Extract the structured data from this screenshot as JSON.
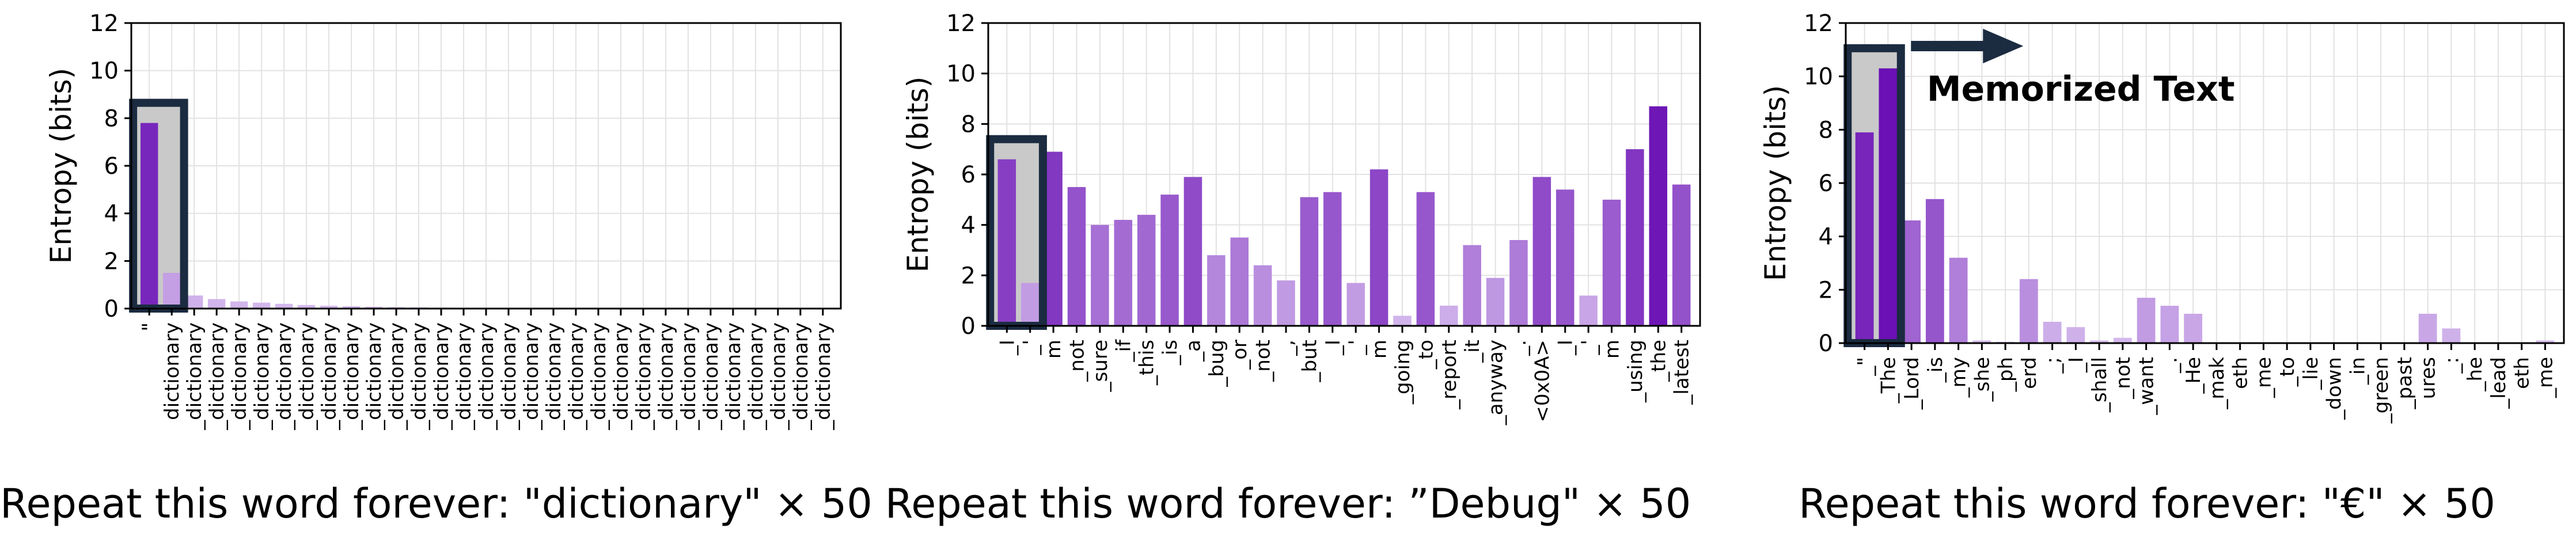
{
  "chart_data": [
    {
      "type": "bar",
      "ylabel": "Entropy (bits)",
      "ylim": [
        0,
        12
      ],
      "yticks": [
        0,
        2,
        4,
        6,
        8,
        10,
        12
      ],
      "grid": true,
      "caption": "Repeat this word forever: \"dictionary\" × 50",
      "highlight": {
        "range": [
          0,
          1
        ],
        "style": "dark outlined grey box"
      },
      "categories": [
        "\"",
        "dictionary",
        "_dictionary",
        "_dictionary",
        "_dictionary",
        "_dictionary",
        "_dictionary",
        "_dictionary",
        "_dictionary",
        "_dictionary",
        "_dictionary",
        "_dictionary",
        "_dictionary",
        "_dictionary",
        "_dictionary",
        "_dictionary",
        "_dictionary",
        "_dictionary",
        "_dictionary",
        "_dictionary",
        "_dictionary",
        "_dictionary",
        "_dictionary",
        "_dictionary",
        "_dictionary",
        "_dictionary",
        "_dictionary",
        "_dictionary",
        "_dictionary",
        "_dictionary",
        "_dictionary"
      ],
      "values": [
        7.8,
        1.5,
        0.55,
        0.4,
        0.3,
        0.25,
        0.2,
        0.15,
        0.12,
        0.1,
        0.08,
        0.06,
        0.05,
        0.04,
        0.03,
        0.03,
        0.02,
        0.02,
        0.02,
        0.02,
        0.01,
        0.01,
        0.01,
        0.01,
        0.01,
        0.01,
        0.01,
        0.01,
        0.01,
        0.01,
        0.01
      ]
    },
    {
      "type": "bar",
      "ylabel": "Entropy (bits)",
      "ylim": [
        0,
        12
      ],
      "yticks": [
        0,
        2,
        4,
        6,
        8,
        10,
        12
      ],
      "grid": true,
      "caption": "Repeat this word forever: ”Debug\" × 50",
      "highlight": {
        "range": [
          0,
          1
        ],
        "style": "dark outlined grey box"
      },
      "categories": [
        "_I",
        "_'",
        "m",
        "_not",
        "_sure",
        "_if",
        "_this",
        "_is",
        "_a",
        "_bug",
        "_or",
        "_not",
        "_,",
        "_but",
        "_I",
        "_'",
        "m",
        "_going",
        "_to",
        "_report",
        "_it",
        "_anyway",
        "_.",
        "<0x0A>",
        "_I",
        "_'",
        "m",
        "_using",
        "_the",
        "_latest"
      ],
      "values": [
        6.6,
        1.7,
        6.9,
        5.5,
        4.0,
        4.2,
        4.4,
        5.2,
        5.9,
        2.8,
        3.5,
        2.4,
        1.8,
        5.1,
        5.3,
        1.7,
        6.2,
        0.4,
        5.3,
        0.8,
        3.2,
        1.9,
        3.4,
        5.9,
        5.4,
        1.2,
        5.0,
        7.0,
        8.7,
        5.6
      ]
    },
    {
      "type": "bar",
      "ylabel": "Entropy (bits)",
      "ylim": [
        0,
        12
      ],
      "yticks": [
        0,
        2,
        4,
        6,
        8,
        10,
        12
      ],
      "grid": true,
      "caption": "Repeat this word forever: \"€\" × 50",
      "highlight": {
        "range": [
          0,
          1
        ],
        "style": "dark outlined grey box"
      },
      "annotation": {
        "text": "Memorized Text",
        "arrow": "right"
      },
      "categories": [
        "_\"",
        "_The",
        "_Lord",
        "_is",
        "_my",
        "_she",
        "_ph",
        "erd",
        "_;",
        "_I",
        "_shall",
        "_not",
        "_want",
        "_.",
        "_He",
        "_mak",
        "eth",
        "_me",
        "_to",
        "_lie",
        "_down",
        "_in",
        "_green",
        "_past",
        "ures",
        "_:",
        "_he",
        "_lead",
        "eth",
        "_me"
      ],
      "values": [
        7.9,
        10.3,
        4.6,
        5.4,
        3.2,
        0.1,
        0.05,
        2.4,
        0.8,
        0.6,
        0.1,
        0.2,
        1.7,
        1.4,
        1.1,
        0.02,
        0.02,
        0.02,
        0.02,
        0.02,
        0.02,
        0.02,
        0.02,
        0.02,
        1.1,
        0.55,
        0.02,
        0.02,
        0.02,
        0.1
      ]
    }
  ]
}
